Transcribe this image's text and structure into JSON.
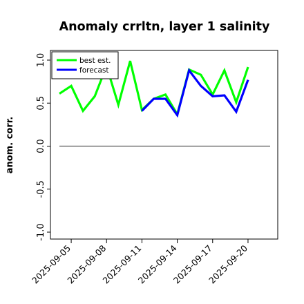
{
  "chart_data": {
    "type": "line",
    "title": "Anomaly crrltn, layer 1 salinity",
    "ylabel": "anom. corr.",
    "xlabel": "",
    "ylim": [
      -1.0,
      1.0
    ],
    "yticks": [
      "-1.0",
      "-0.5",
      "0.0",
      "0.5",
      "1.0"
    ],
    "x": [
      "2025-09-04",
      "2025-09-05",
      "2025-09-06",
      "2025-09-07",
      "2025-09-08",
      "2025-09-09",
      "2025-09-10",
      "2025-09-11",
      "2025-09-12",
      "2025-09-13",
      "2025-09-14",
      "2025-09-15",
      "2025-09-16",
      "2025-09-17",
      "2025-09-18",
      "2025-09-19",
      "2025-09-20"
    ],
    "xtick_labels": [
      "2025-09-05",
      "2025-09-08",
      "2025-09-11",
      "2025-09-14",
      "2025-09-17",
      "2025-09-20"
    ],
    "highlighted_tick": "2025-09-11",
    "highlight_color": "#228b22",
    "series": [
      {
        "name": "best est.",
        "color": "#00ff00",
        "values": [
          0.61,
          0.7,
          0.41,
          0.58,
          0.93,
          0.48,
          0.99,
          0.42,
          0.55,
          0.6,
          0.37,
          0.89,
          0.83,
          0.6,
          0.88,
          0.51,
          0.92
        ]
      },
      {
        "name": "forecast",
        "color": "#0000ff",
        "values": [
          null,
          null,
          null,
          null,
          null,
          null,
          null,
          0.41,
          0.55,
          0.55,
          0.36,
          0.88,
          0.7,
          0.58,
          0.59,
          0.4,
          0.77
        ]
      }
    ],
    "reference_line": 0.0,
    "grid": false,
    "legend_position": "top-left"
  }
}
